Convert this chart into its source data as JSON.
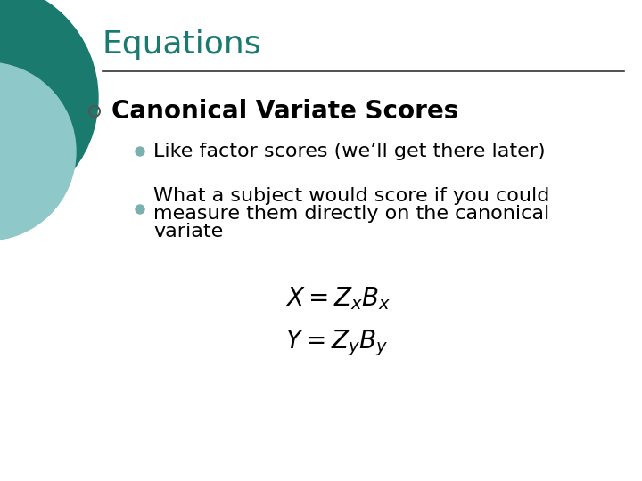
{
  "title": "Equations",
  "title_color": "#1a7a70",
  "title_fontsize": 26,
  "bg_color": "#FFFFFF",
  "separator_color": "#333333",
  "bullet1_text": "Canonical Variate Scores",
  "bullet1_color": "#000000",
  "bullet1_fontsize": 20,
  "sub_bullet1": "Like factor scores (we’ll get there later)",
  "sub_bullet2_line1": "What a subject would score if you could",
  "sub_bullet2_line2": "measure them directly on the canonical",
  "sub_bullet2_line3": "variate",
  "sub_bullet_fontsize": 16,
  "sub_bullet_color": "#000000",
  "eq_fontsize": 20,
  "circle_color_outer": "#1a7a6e",
  "circle_color_inner": "#8fc8c8",
  "open_circle_color": "#555555",
  "filled_bullet_color": "#7ab0b0"
}
